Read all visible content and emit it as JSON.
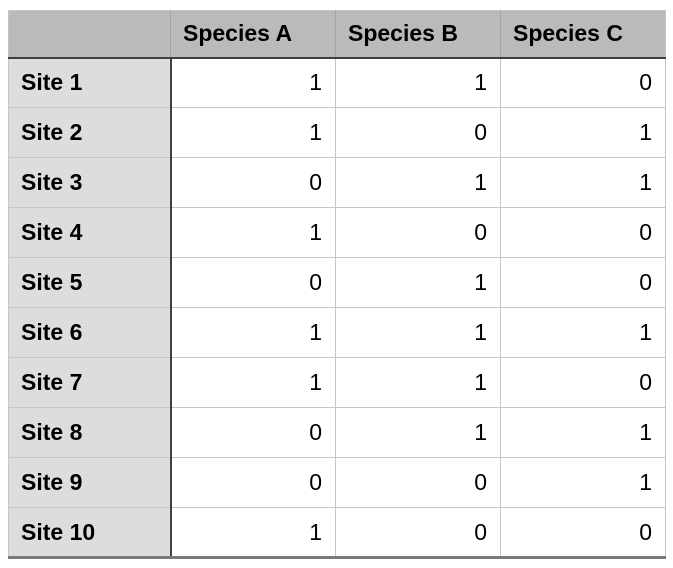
{
  "chart_data": {
    "type": "table",
    "title": "",
    "row_header_label": "",
    "columns": [
      "Species A",
      "Species B",
      "Species C"
    ],
    "row_labels": [
      "Site 1",
      "Site 2",
      "Site 3",
      "Site 4",
      "Site 5",
      "Site 6",
      "Site 7",
      "Site 8",
      "Site 9",
      "Site 10"
    ],
    "rows": [
      {
        "label": "Site 1",
        "values": [
          "1",
          "1",
          "0"
        ]
      },
      {
        "label": "Site 2",
        "values": [
          "1",
          "0",
          "1"
        ]
      },
      {
        "label": "Site 3",
        "values": [
          "0",
          "1",
          "1"
        ]
      },
      {
        "label": "Site 4",
        "values": [
          "1",
          "0",
          "0"
        ]
      },
      {
        "label": "Site 5",
        "values": [
          "0",
          "1",
          "0"
        ]
      },
      {
        "label": "Site 6",
        "values": [
          "1",
          "1",
          "1"
        ]
      },
      {
        "label": "Site 7",
        "values": [
          "1",
          "1",
          "0"
        ]
      },
      {
        "label": "Site 8",
        "values": [
          "0",
          "1",
          "1"
        ]
      },
      {
        "label": "Site 9",
        "values": [
          "0",
          "0",
          "1"
        ]
      },
      {
        "label": "Site 10",
        "values": [
          "1",
          "0",
          "0"
        ]
      }
    ],
    "series": [
      {
        "name": "Species A",
        "values": [
          1,
          1,
          0,
          1,
          0,
          1,
          1,
          0,
          0,
          1
        ]
      },
      {
        "name": "Species B",
        "values": [
          1,
          0,
          1,
          0,
          1,
          1,
          1,
          1,
          0,
          0
        ]
      },
      {
        "name": "Species C",
        "values": [
          0,
          1,
          1,
          0,
          0,
          1,
          0,
          1,
          1,
          0
        ]
      }
    ]
  },
  "colors": {
    "header_background": "#b9bbb8",
    "row_header_background": "#dcdddc",
    "grid_line": "#c6c6c6",
    "dark_separator": "#404040",
    "bottom_border": "#7a7a7a",
    "text": "#000000",
    "cell_background": "#ffffff"
  }
}
